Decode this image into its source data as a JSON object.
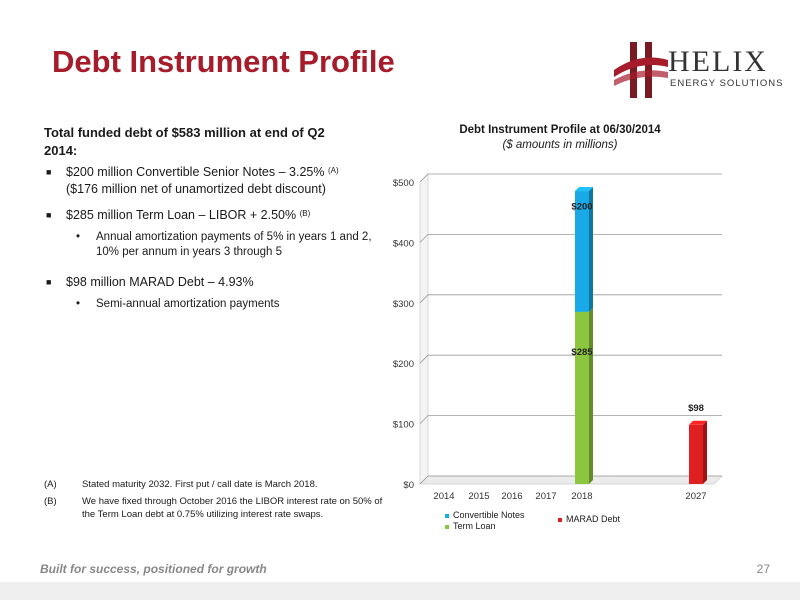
{
  "header": {
    "title": "Debt Instrument Profile",
    "logo_name": "HELIX",
    "logo_sub": "ENERGY SOLUTIONS"
  },
  "summary": {
    "heading": "Total funded debt of $583 million at end of Q2 2014:",
    "bullets": [
      {
        "text": "$200 million Convertible Senior Notes – 3.25%",
        "sup": "(A)",
        "text2": "($176 million net of unamortized debt discount)"
      },
      {
        "text": "$285 million Term Loan – LIBOR + 2.50%",
        "sup": "(B)",
        "sub": "Annual amortization payments of 5% in years 1 and 2, 10% per annum in years 3 through 5"
      },
      {
        "text": "$98 million MARAD Debt – 4.93%",
        "sub": "Semi-annual amortization payments"
      }
    ]
  },
  "notes": [
    {
      "tag": "(A)",
      "text": "Stated maturity 2032. First put / call date is March 2018."
    },
    {
      "tag": "(B)",
      "text": "We have fixed through October 2016 the LIBOR interest rate on 50% of the Term Loan debt at 0.75% utilizing interest rate swaps."
    }
  ],
  "footer": {
    "tagline": "Built for success, positioned for growth",
    "page_number": "27"
  },
  "colors": {
    "title": "#a61c2b",
    "convertible": "#19a9e8",
    "term_loan": "#8cc63f",
    "marad": "#e02020"
  },
  "chart_data": {
    "type": "bar",
    "stacked": true,
    "title": "Debt Instrument Profile at 06/30/2014",
    "subtitle": "($ amounts in millions)",
    "categories": [
      "2014",
      "2015",
      "2016",
      "2017",
      "2018",
      "2027"
    ],
    "series": [
      {
        "name": "Term Loan",
        "values": [
          0,
          0,
          0,
          0,
          285,
          0
        ],
        "color": "#8cc63f"
      },
      {
        "name": "Convertible Notes",
        "values": [
          0,
          0,
          0,
          0,
          200,
          0
        ],
        "color": "#19a9e8"
      },
      {
        "name": "MARAD Debt",
        "values": [
          0,
          0,
          0,
          0,
          0,
          98
        ],
        "color": "#e02020"
      }
    ],
    "data_labels": [
      {
        "category": "2018",
        "series": "Term Loan",
        "text": "$285"
      },
      {
        "category": "2018",
        "series": "Convertible Notes",
        "text": "$200"
      },
      {
        "category": "2027",
        "series": "MARAD Debt",
        "text": "$98"
      }
    ],
    "y_ticks": [
      "$0",
      "$100",
      "$200",
      "$300",
      "$400",
      "$500"
    ],
    "y_tick_values": [
      0,
      100,
      200,
      300,
      400,
      500
    ],
    "ylim": [
      0,
      500
    ],
    "grid": true,
    "legend_position": "bottom",
    "xlabel": "",
    "ylabel": ""
  }
}
